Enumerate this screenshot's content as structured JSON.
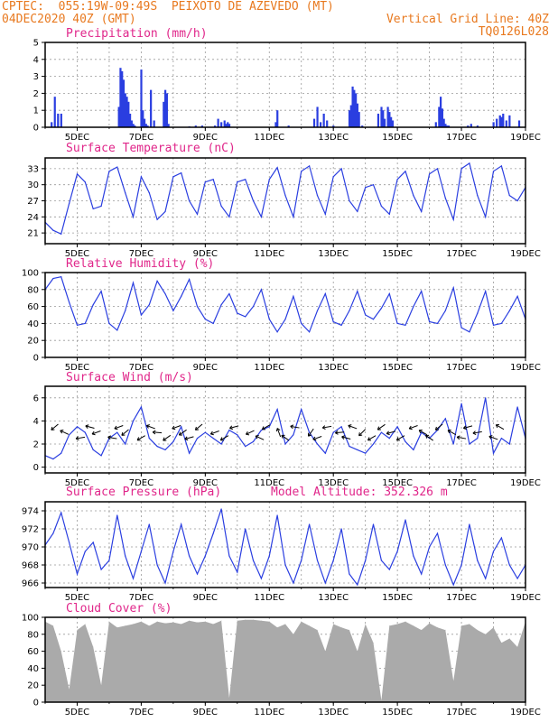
{
  "header": {
    "source": "CPTEC:",
    "coords": "055:19W-09:49S",
    "location": "PEIXOTO DE AZEVEDO (MT)",
    "start": "04DEC2020 40Z (GMT)",
    "grid_note": "Vertical Grid Line: 40Z",
    "model": "TQ0126L028"
  },
  "x_axis": {
    "labels": [
      "5DEC",
      "7DEC",
      "9DEC",
      "11DEC",
      "13DEC",
      "15DEC",
      "17DEC",
      "19DEC"
    ],
    "range_days": [
      4.0,
      19.0
    ]
  },
  "colors": {
    "line": "#2a3ee0",
    "bar": "#2a3ee0",
    "cloud": "#aaaaaa",
    "title": "#e0268a",
    "header": "#e8791f"
  },
  "chart_data": [
    {
      "type": "bar",
      "title": "Precipitation (mm/h)",
      "ylim": [
        0,
        5
      ],
      "yticks": [
        0,
        1,
        2,
        3,
        4,
        5
      ],
      "grid": true,
      "x": [
        4.2,
        4.3,
        4.4,
        4.5,
        6.3,
        6.35,
        6.4,
        6.45,
        6.5,
        6.55,
        6.6,
        6.65,
        6.7,
        6.75,
        6.8,
        7.0,
        7.05,
        7.1,
        7.15,
        7.2,
        7.3,
        7.4,
        7.7,
        7.75,
        7.8,
        7.85,
        8.5,
        8.7,
        8.9,
        9.3,
        9.4,
        9.5,
        9.6,
        9.65,
        9.7,
        9.75,
        11.2,
        11.25,
        11.6,
        12.4,
        12.5,
        12.6,
        12.7,
        12.8,
        13.0,
        13.5,
        13.55,
        13.6,
        13.65,
        13.7,
        13.75,
        13.8,
        13.9,
        14.4,
        14.5,
        14.55,
        14.6,
        14.7,
        14.75,
        14.8,
        14.85,
        16.2,
        16.3,
        16.35,
        16.4,
        16.45,
        16.5,
        16.55,
        16.6,
        17.2,
        17.3,
        17.5,
        18.0,
        18.1,
        18.2,
        18.25,
        18.3,
        18.4,
        18.5,
        18.8
      ],
      "values": [
        0.3,
        1.8,
        0.8,
        0.8,
        1.2,
        3.5,
        3.3,
        2.8,
        2.0,
        1.8,
        1.5,
        0.8,
        0.4,
        0.2,
        0.1,
        3.4,
        1.0,
        0.5,
        0.2,
        0.1,
        2.2,
        0.4,
        1.5,
        2.2,
        2.0,
        0.2,
        0.05,
        0.1,
        0.1,
        0.1,
        0.5,
        0.3,
        0.4,
        0.2,
        0.3,
        0.2,
        0.3,
        1.0,
        0.1,
        0.5,
        1.2,
        0.3,
        0.8,
        0.4,
        0.1,
        1.0,
        1.3,
        2.4,
        2.2,
        2.0,
        1.4,
        0.9,
        0.1,
        0.8,
        1.2,
        1.0,
        0.5,
        1.2,
        0.9,
        0.6,
        0.4,
        0.3,
        1.2,
        1.8,
        1.1,
        0.5,
        0.2,
        0.1,
        0.1,
        0.1,
        0.2,
        0.1,
        0.3,
        0.5,
        0.7,
        0.6,
        0.8,
        0.4,
        0.7,
        0.4
      ]
    },
    {
      "type": "line",
      "title": "Surface Temperature (nC)",
      "ylim": [
        19,
        35
      ],
      "yticks": [
        21,
        24,
        27,
        30,
        33
      ],
      "grid": true,
      "x": [
        4.0,
        4.25,
        4.5,
        4.75,
        5.0,
        5.25,
        5.5,
        5.75,
        6.0,
        6.25,
        6.5,
        6.75,
        7.0,
        7.25,
        7.5,
        7.75,
        8.0,
        8.25,
        8.5,
        8.75,
        9.0,
        9.25,
        9.5,
        9.75,
        10.0,
        10.25,
        10.5,
        10.75,
        11.0,
        11.25,
        11.5,
        11.75,
        12.0,
        12.25,
        12.5,
        12.75,
        13.0,
        13.25,
        13.5,
        13.75,
        14.0,
        14.25,
        14.5,
        14.75,
        15.0,
        15.25,
        15.5,
        15.75,
        16.0,
        16.25,
        16.5,
        16.75,
        17.0,
        17.25,
        17.5,
        17.75,
        18.0,
        18.25,
        18.5,
        18.75,
        19.0
      ],
      "values": [
        23.0,
        21.5,
        20.8,
        26.5,
        32.0,
        30.5,
        25.5,
        26.0,
        32.5,
        33.3,
        28.5,
        24.0,
        31.5,
        28.5,
        23.5,
        25.0,
        31.5,
        32.2,
        27.0,
        24.5,
        30.5,
        31.0,
        26.0,
        24.0,
        30.5,
        31.0,
        27.0,
        24.0,
        31.0,
        33.2,
        28.0,
        24.0,
        32.5,
        33.5,
        28.0,
        24.5,
        31.5,
        33.0,
        27.0,
        25.0,
        29.5,
        30.0,
        26.0,
        24.5,
        31.0,
        32.5,
        28.0,
        25.0,
        32.0,
        33.0,
        27.5,
        23.5,
        33.0,
        34.0,
        28.0,
        24.0,
        32.5,
        33.5,
        28.0,
        27.0,
        29.5
      ]
    },
    {
      "type": "line",
      "title": "Relative Humidity (%)",
      "ylim": [
        0,
        100
      ],
      "yticks": [
        0,
        20,
        40,
        60,
        80,
        100
      ],
      "grid": true,
      "x": [
        4.0,
        4.25,
        4.5,
        4.75,
        5.0,
        5.25,
        5.5,
        5.75,
        6.0,
        6.25,
        6.5,
        6.75,
        7.0,
        7.25,
        7.5,
        7.75,
        8.0,
        8.25,
        8.5,
        8.75,
        9.0,
        9.25,
        9.5,
        9.75,
        10.0,
        10.25,
        10.5,
        10.75,
        11.0,
        11.25,
        11.5,
        11.75,
        12.0,
        12.25,
        12.5,
        12.75,
        13.0,
        13.25,
        13.5,
        13.75,
        14.0,
        14.25,
        14.5,
        14.75,
        15.0,
        15.25,
        15.5,
        15.75,
        16.0,
        16.25,
        16.5,
        16.75,
        17.0,
        17.25,
        17.5,
        17.75,
        18.0,
        18.25,
        18.5,
        18.75,
        19.0
      ],
      "values": [
        80,
        93,
        95,
        65,
        38,
        40,
        62,
        78,
        40,
        32,
        55,
        88,
        50,
        62,
        90,
        75,
        55,
        72,
        92,
        60,
        45,
        40,
        62,
        75,
        52,
        48,
        60,
        80,
        45,
        30,
        45,
        72,
        40,
        30,
        55,
        75,
        42,
        38,
        55,
        78,
        50,
        45,
        58,
        75,
        40,
        38,
        60,
        78,
        42,
        40,
        55,
        82,
        35,
        30,
        52,
        78,
        38,
        40,
        55,
        72,
        45
      ]
    },
    {
      "type": "line",
      "title": "Surface Wind (m/s)",
      "ylim": [
        -0.5,
        7
      ],
      "yticks": [
        0,
        2,
        4,
        6
      ],
      "grid": true,
      "x": [
        4.0,
        4.25,
        4.5,
        4.75,
        5.0,
        5.25,
        5.5,
        5.75,
        6.0,
        6.25,
        6.5,
        6.75,
        7.0,
        7.25,
        7.5,
        7.75,
        8.0,
        8.25,
        8.5,
        8.75,
        9.0,
        9.25,
        9.5,
        9.75,
        10.0,
        10.25,
        10.5,
        10.75,
        11.0,
        11.25,
        11.5,
        11.75,
        12.0,
        12.25,
        12.5,
        12.75,
        13.0,
        13.25,
        13.5,
        13.75,
        14.0,
        14.25,
        14.5,
        14.75,
        15.0,
        15.25,
        15.5,
        15.75,
        16.0,
        16.25,
        16.5,
        16.75,
        17.0,
        17.25,
        17.5,
        17.75,
        18.0,
        18.25,
        18.5,
        18.75,
        19.0
      ],
      "values": [
        1.0,
        0.7,
        1.2,
        2.8,
        3.5,
        3.0,
        1.5,
        1.0,
        2.5,
        3.0,
        2.0,
        4.0,
        5.2,
        2.5,
        1.8,
        1.5,
        2.2,
        3.5,
        1.2,
        2.5,
        3.0,
        2.5,
        2.0,
        3.2,
        2.8,
        1.8,
        2.2,
        3.2,
        3.5,
        5.0,
        2.0,
        2.8,
        5.0,
        3.0,
        2.0,
        1.2,
        3.0,
        3.5,
        1.8,
        1.5,
        1.2,
        2.0,
        3.0,
        2.5,
        3.5,
        2.2,
        1.5,
        3.0,
        2.5,
        3.2,
        4.2,
        2.0,
        5.5,
        2.0,
        2.5,
        6.0,
        1.2,
        2.5,
        2.0,
        5.2,
        2.5
      ],
      "arrows": [
        [
          4.3,
          40
        ],
        [
          4.6,
          -25
        ],
        [
          5.1,
          10
        ],
        [
          5.4,
          -15
        ],
        [
          5.6,
          20
        ],
        [
          6.1,
          -10
        ],
        [
          6.3,
          20
        ],
        [
          6.5,
          40
        ],
        [
          7.0,
          30
        ],
        [
          7.3,
          -20
        ],
        [
          7.5,
          -5
        ],
        [
          7.8,
          35
        ],
        [
          8.1,
          20
        ],
        [
          8.3,
          35
        ],
        [
          8.5,
          15
        ],
        [
          8.8,
          40
        ],
        [
          9.3,
          20
        ],
        [
          9.6,
          30
        ],
        [
          9.9,
          15
        ],
        [
          10.4,
          25
        ],
        [
          10.7,
          -25
        ],
        [
          10.9,
          30
        ],
        [
          11.3,
          -70
        ],
        [
          11.5,
          -35
        ],
        [
          11.8,
          -10
        ],
        [
          12.3,
          55
        ],
        [
          12.5,
          20
        ],
        [
          12.8,
          10
        ],
        [
          13.2,
          5
        ],
        [
          13.4,
          -15
        ],
        [
          13.6,
          -20
        ],
        [
          13.9,
          45
        ],
        [
          14.2,
          30
        ],
        [
          14.5,
          35
        ],
        [
          14.8,
          15
        ],
        [
          15.1,
          30
        ],
        [
          15.5,
          20
        ],
        [
          15.8,
          -30
        ],
        [
          16.0,
          -35
        ],
        [
          16.3,
          40
        ],
        [
          16.7,
          -30
        ],
        [
          17.0,
          -10
        ],
        [
          17.2,
          15
        ],
        [
          17.5,
          10
        ],
        [
          18.0,
          -20
        ],
        [
          18.2,
          -30
        ]
      ]
    },
    {
      "type": "line",
      "title": "Surface Pressure (hPa)",
      "annotation": "Model Altitude: 352.326 m",
      "ylim": [
        965.5,
        975
      ],
      "yticks": [
        966,
        968,
        970,
        972,
        974
      ],
      "grid": true,
      "x": [
        4.0,
        4.25,
        4.5,
        4.75,
        5.0,
        5.25,
        5.5,
        5.75,
        6.0,
        6.25,
        6.5,
        6.75,
        7.0,
        7.25,
        7.5,
        7.75,
        8.0,
        8.25,
        8.5,
        8.75,
        9.0,
        9.25,
        9.5,
        9.75,
        10.0,
        10.25,
        10.5,
        10.75,
        11.0,
        11.25,
        11.5,
        11.75,
        12.0,
        12.25,
        12.5,
        12.75,
        13.0,
        13.25,
        13.5,
        13.75,
        14.0,
        14.25,
        14.5,
        14.75,
        15.0,
        15.25,
        15.5,
        15.75,
        16.0,
        16.25,
        16.5,
        16.75,
        17.0,
        17.25,
        17.5,
        17.75,
        18.0,
        18.25,
        18.5,
        18.75,
        19.0
      ],
      "values": [
        970.2,
        971.5,
        973.8,
        970.5,
        967.0,
        969.5,
        970.5,
        967.5,
        968.5,
        973.5,
        969.0,
        966.5,
        969.5,
        972.5,
        968.0,
        966.0,
        969.5,
        972.5,
        969.0,
        967.0,
        969.0,
        971.5,
        974.2,
        969.0,
        967.2,
        972.0,
        968.5,
        966.5,
        969.0,
        973.5,
        968.0,
        966.0,
        968.5,
        972.5,
        968.5,
        966.0,
        968.5,
        972.0,
        967.0,
        965.8,
        968.5,
        972.5,
        968.5,
        967.5,
        969.5,
        973.0,
        969.0,
        967.0,
        970.0,
        971.5,
        968.0,
        965.8,
        968.0,
        972.5,
        968.5,
        966.5,
        969.5,
        971.0,
        968.0,
        966.5,
        968.0
      ]
    },
    {
      "type": "area",
      "title": "Cloud Cover (%)",
      "ylim": [
        0,
        100
      ],
      "yticks": [
        0,
        20,
        40,
        60,
        80,
        100
      ],
      "grid": true,
      "x": [
        4.0,
        4.25,
        4.5,
        4.75,
        5.0,
        5.25,
        5.5,
        5.75,
        6.0,
        6.25,
        6.5,
        6.75,
        7.0,
        7.25,
        7.5,
        7.75,
        8.0,
        8.25,
        8.5,
        8.75,
        9.0,
        9.25,
        9.5,
        9.75,
        10.0,
        10.25,
        10.5,
        10.75,
        11.0,
        11.25,
        11.5,
        11.75,
        12.0,
        12.25,
        12.5,
        12.75,
        13.0,
        13.25,
        13.5,
        13.75,
        14.0,
        14.25,
        14.5,
        14.75,
        15.0,
        15.25,
        15.5,
        15.75,
        16.0,
        16.25,
        16.5,
        16.75,
        17.0,
        17.25,
        17.5,
        17.75,
        18.0,
        18.25,
        18.5,
        18.75,
        19.0
      ],
      "values": [
        95,
        90,
        60,
        15,
        85,
        92,
        65,
        20,
        95,
        88,
        90,
        92,
        95,
        90,
        95,
        93,
        94,
        92,
        96,
        94,
        95,
        92,
        96,
        5,
        96,
        97,
        97,
        96,
        95,
        88,
        92,
        80,
        95,
        90,
        85,
        60,
        92,
        88,
        85,
        60,
        92,
        70,
        2,
        90,
        92,
        95,
        90,
        85,
        93,
        88,
        85,
        25,
        90,
        92,
        85,
        80,
        88,
        70,
        75,
        65,
        95
      ]
    }
  ]
}
